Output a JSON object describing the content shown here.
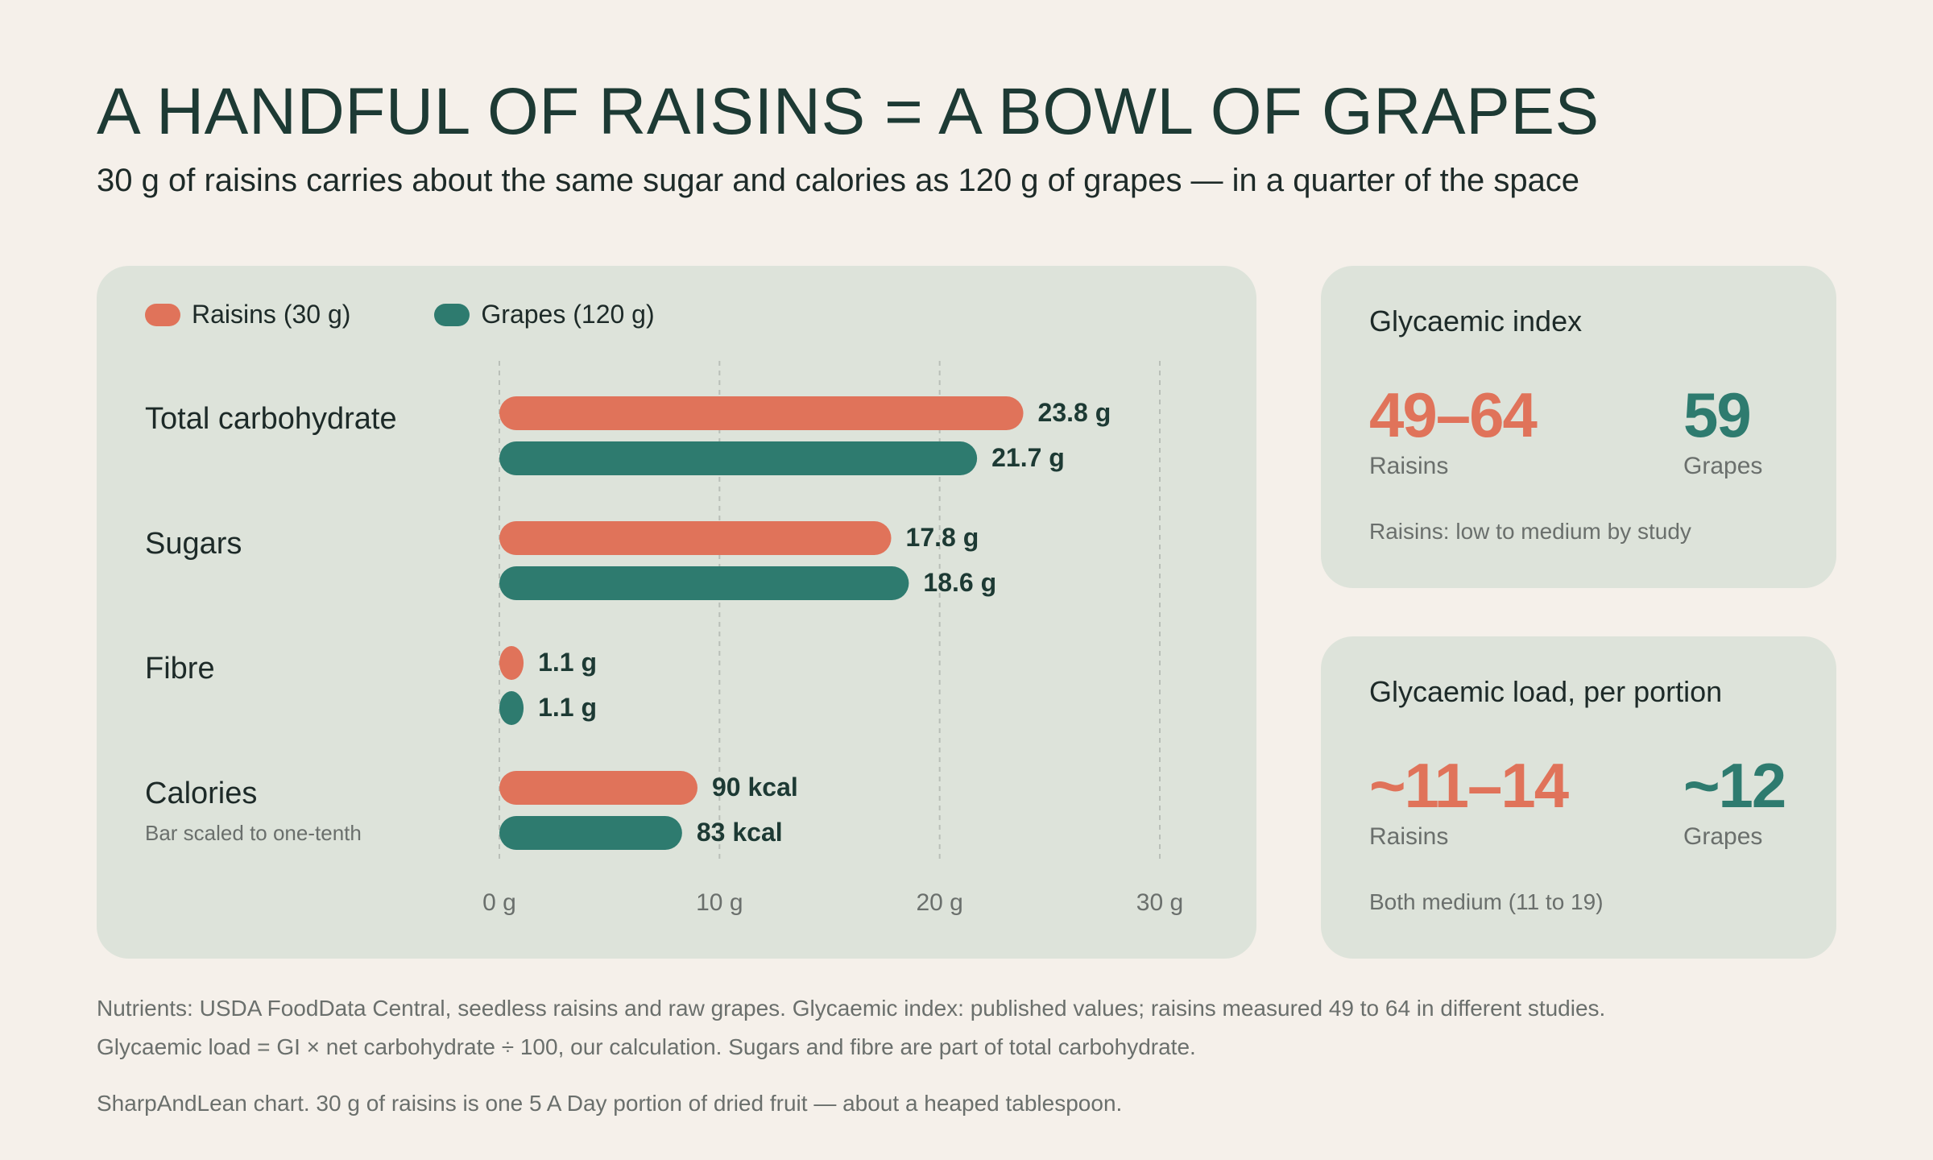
{
  "title": "A HANDFUL OF RAISINS = A BOWL OF GRAPES",
  "subtitle": "30 g of raisins carries about the same sugar and calories as 120 g of grapes — in a quarter of the space",
  "colors": {
    "raisins": "#e0735a",
    "grapes": "#2e7b6f",
    "panel": "#dde3da",
    "background": "#f5f0ea"
  },
  "chart_data": {
    "type": "bar",
    "orientation": "horizontal",
    "legend_position": "top-left",
    "grid": true,
    "xlim": [
      0,
      30
    ],
    "x_ticks": [
      "0 g",
      "10 g",
      "20 g",
      "30 g"
    ],
    "categories": [
      {
        "label": "Total carbohydrate",
        "note": ""
      },
      {
        "label": "Sugars",
        "note": ""
      },
      {
        "label": "Fibre",
        "note": ""
      },
      {
        "label": "Calories",
        "note": "Bar scaled to one-tenth"
      }
    ],
    "series": [
      {
        "name": "Raisins (30 g)",
        "color": "#e0735a",
        "values": [
          23.8,
          17.8,
          1.1,
          9.0
        ],
        "labels": [
          "23.8 g",
          "17.8 g",
          "1.1 g",
          "90 kcal"
        ]
      },
      {
        "name": "Grapes (120 g)",
        "color": "#2e7b6f",
        "values": [
          21.7,
          18.6,
          1.1,
          8.3
        ],
        "labels": [
          "21.7 g",
          "18.6 g",
          "1.1 g",
          "83 kcal"
        ]
      }
    ]
  },
  "gi_card": {
    "title": "Glycaemic index",
    "raisins_value": "49–64",
    "raisins_label": "Raisins",
    "grapes_value": "59",
    "grapes_label": "Grapes",
    "note": "Raisins: low to medium by study"
  },
  "gl_card": {
    "title": "Glycaemic load, per portion",
    "raisins_value": "~11–14",
    "raisins_label": "Raisins",
    "grapes_value": "~12",
    "grapes_label": "Grapes",
    "note": "Both medium (11 to 19)"
  },
  "footnotes": {
    "line1": "Nutrients: USDA FoodData Central, seedless raisins and raw grapes. Glycaemic index: published values; raisins measured 49 to 64 in different studies.",
    "line2": "Glycaemic load = GI × net carbohydrate ÷ 100, our calculation. Sugars and fibre are part of total carbohydrate.",
    "line3": "SharpAndLean chart. 30 g of raisins is one 5 A Day portion of dried fruit — about a heaped tablespoon."
  }
}
